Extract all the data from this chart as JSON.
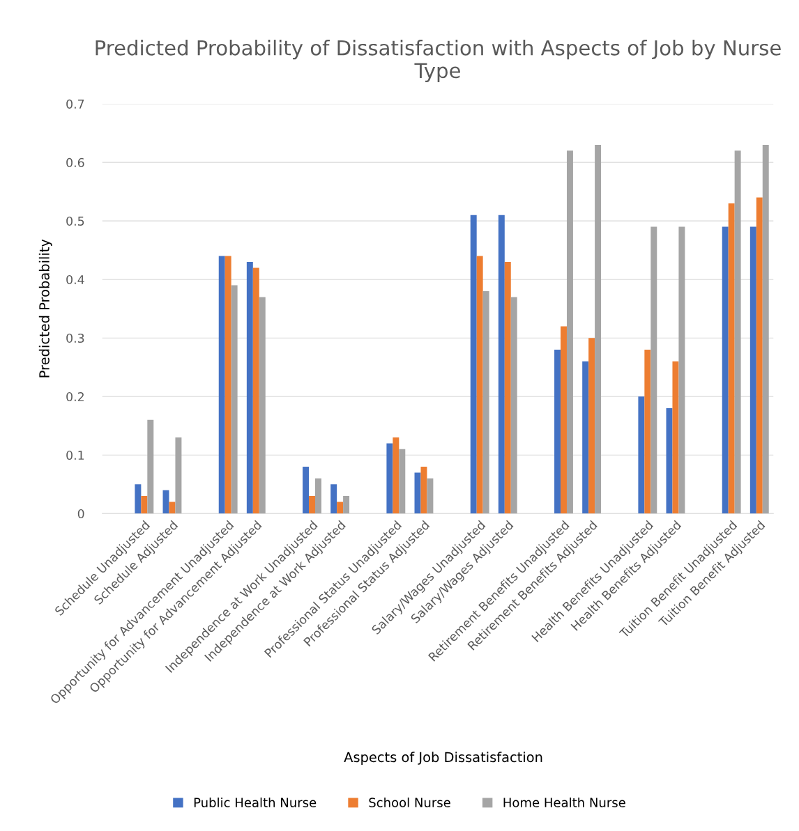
{
  "chart_data": {
    "type": "bar",
    "title": "Predicted Probability of Dissatisfaction with Aspects of Job by Nurse Type",
    "xlabel": "Aspects of Job Dissatisfaction",
    "ylabel": "Predicted Probability",
    "categories": [
      null,
      "Schedule Unadjusted",
      "Schedule Adjusted",
      null,
      "Opportunity for Advancement Unadjusted",
      "Opportunity for Advancement Adjusted",
      null,
      "Independence at Work Unadjusted",
      "Independence at Work Adjusted",
      null,
      "Professional Status Unadjusted",
      "Professional Status Adjusted",
      null,
      "Salary/Wages Unadjusted",
      "Salary/Wages Adjusted",
      null,
      "Retirement Benefits Unadjusted",
      "Retirement Benefits Adjusted",
      null,
      "Health Benefits Unadjusted",
      "Health Benefits Adjusted",
      null,
      "Tuition Benefit Unadjusted",
      "Tuition Benefit Adjusted"
    ],
    "series": [
      {
        "name": "Public Health Nurse",
        "color": "#4472c4",
        "values": [
          null,
          0.05,
          0.04,
          null,
          0.44,
          0.43,
          null,
          0.08,
          0.05,
          null,
          0.12,
          0.07,
          null,
          0.51,
          0.51,
          null,
          0.28,
          0.26,
          null,
          0.2,
          0.18,
          null,
          0.49,
          0.49
        ]
      },
      {
        "name": "School Nurse",
        "color": "#ed7d31",
        "values": [
          null,
          0.03,
          0.02,
          null,
          0.44,
          0.42,
          null,
          0.03,
          0.02,
          null,
          0.13,
          0.08,
          null,
          0.44,
          0.43,
          null,
          0.32,
          0.3,
          null,
          0.28,
          0.26,
          null,
          0.53,
          0.54
        ]
      },
      {
        "name": "Home Health Nurse",
        "color": "#a5a5a5",
        "values": [
          null,
          0.16,
          0.13,
          null,
          0.39,
          0.37,
          null,
          0.06,
          0.03,
          null,
          0.11,
          0.06,
          null,
          0.38,
          0.37,
          null,
          0.62,
          0.63,
          null,
          0.49,
          0.49,
          null,
          0.62,
          0.63
        ]
      }
    ],
    "ylim": [
      0,
      0.7
    ],
    "yticks": [
      {
        "value": 0,
        "label": "0"
      },
      0.1,
      0.2,
      0.3,
      0.4,
      0.5,
      0.6,
      0.7
    ],
    "grid": "y",
    "legend": "bottom"
  }
}
